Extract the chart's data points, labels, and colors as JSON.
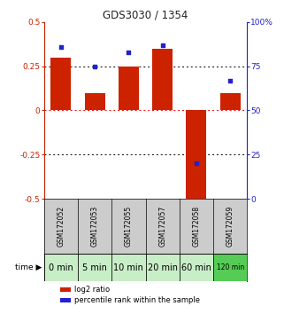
{
  "title": "GDS3030 / 1354",
  "samples": [
    "GSM172052",
    "GSM172053",
    "GSM172055",
    "GSM172057",
    "GSM172058",
    "GSM172059"
  ],
  "time_labels": [
    "0 min",
    "5 min",
    "10 min",
    "20 min",
    "60 min",
    "120 min"
  ],
  "log2_ratio": [
    0.3,
    0.1,
    0.25,
    0.35,
    -0.52,
    0.1
  ],
  "percentile_rank": [
    86,
    75,
    83,
    87,
    20,
    67
  ],
  "bar_color": "#cc2200",
  "dot_color": "#2222cc",
  "ylim_left": [
    -0.5,
    0.5
  ],
  "ylim_right": [
    0,
    100
  ],
  "yticks_left": [
    -0.5,
    -0.25,
    0,
    0.25,
    0.5
  ],
  "yticks_right": [
    0,
    25,
    50,
    75,
    100
  ],
  "hlines": [
    -0.25,
    0.0,
    0.25
  ],
  "hline_colors": [
    "black",
    "red",
    "black"
  ],
  "hline_styles": [
    "dotted",
    "dotted",
    "dotted"
  ],
  "bg_color": "#ffffff",
  "sample_bg": "#cccccc",
  "time_colors": [
    "#c8eec8",
    "#c8eec8",
    "#c8eec8",
    "#c8eec8",
    "#c8eec8",
    "#55cc55"
  ],
  "title_color": "#222222",
  "left_axis_color": "#cc2200",
  "right_axis_color": "#2222cc",
  "legend_labels": [
    "log2 ratio",
    "percentile rank within the sample"
  ]
}
